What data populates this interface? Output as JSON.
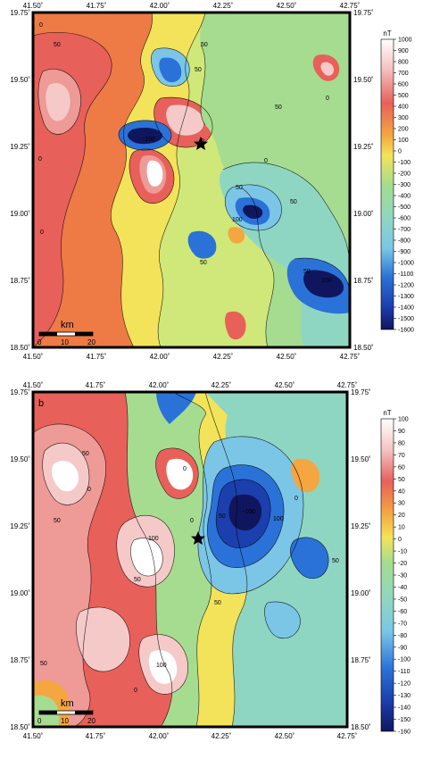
{
  "panels": [
    {
      "id": "a",
      "label": "",
      "lon_ticks": [
        "41.50˚",
        "41.75˚",
        "42.00˚",
        "42.25˚",
        "42.50˚",
        "42.75˚"
      ],
      "lat_ticks": [
        "19.75˚",
        "19.50˚",
        "19.25˚",
        "19.00˚",
        "18.75˚",
        "18.50˚"
      ],
      "colorbar_unit": "nT",
      "colorbar_labels": [
        "1000",
        "900",
        "800",
        "700",
        "600",
        "500",
        "400",
        "300",
        "200",
        "100",
        "0",
        "-100",
        "-200",
        "-300",
        "-400",
        "-500",
        "-600",
        "-700",
        "-800",
        "-900",
        "-1000",
        "-1100",
        "-1200",
        "-1300",
        "-1400",
        "-1500",
        "-1600"
      ],
      "scale_label": "km",
      "scale_ticks": [
        "0",
        "10",
        "20"
      ],
      "contour_labels": [
        "0",
        "50",
        "50",
        "0",
        "-100",
        "50",
        "50",
        "100",
        "0",
        "50",
        "0",
        "50",
        "50",
        "0",
        "100",
        "50",
        "0"
      ],
      "marker": "star"
    },
    {
      "id": "b",
      "label": "b",
      "lon_ticks": [
        "41.50˚",
        "41.75˚",
        "42.00˚",
        "42.25˚",
        "42.50˚",
        "42.75˚"
      ],
      "lat_ticks": [
        "19.75˚",
        "19.50˚",
        "19.25˚",
        "19.00˚",
        "18.75˚",
        "18.50˚"
      ],
      "colorbar_unit": "nT",
      "colorbar_labels": [
        "100",
        "90",
        "80",
        "70",
        "60",
        "50",
        "40",
        "30",
        "20",
        "10",
        "0",
        "-10",
        "-20",
        "-30",
        "-40",
        "-50",
        "-60",
        "-70",
        "-80",
        "-90",
        "-100",
        "-110",
        "-120",
        "-130",
        "-140",
        "-150",
        "-160"
      ],
      "scale_label": "km",
      "scale_ticks": [
        "0",
        "10",
        "20"
      ],
      "contour_labels": [
        "50",
        "0",
        "50",
        "100",
        "50",
        "0",
        "100",
        "50",
        "0",
        "-100",
        "50",
        "0",
        "50",
        "100",
        "50",
        "0"
      ],
      "marker": "star"
    }
  ],
  "colors": {
    "white": "#ffffff",
    "pink_light": "#f6c9c9",
    "pink": "#ee9a96",
    "red": "#e8605a",
    "orange_red": "#ee7a46",
    "orange": "#f4a640",
    "yellow": "#f3e35a",
    "lime": "#cfe879",
    "green": "#a6dc8f",
    "teal": "#8fd6c2",
    "cyan": "#7bc6e6",
    "sky": "#4fa3e6",
    "blue": "#2a72d8",
    "deep_blue": "#1c3fae",
    "navy": "#10165e",
    "star": "#000000",
    "frame": "#000000"
  }
}
